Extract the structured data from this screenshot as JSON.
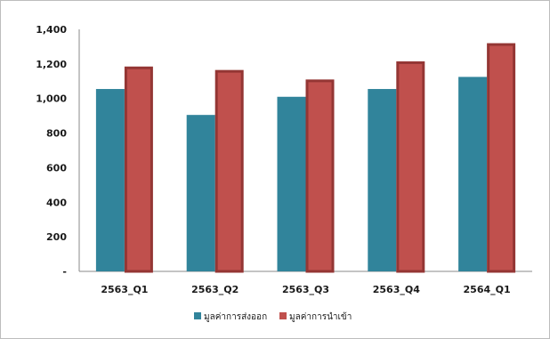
{
  "chart_data": {
    "type": "bar",
    "categories": [
      "2563_Q1",
      "2563_Q2",
      "2563_Q3",
      "2563_Q4",
      "2564_Q1"
    ],
    "series": [
      {
        "name": "มูลค่าการส่งออก",
        "values": [
          1055,
          905,
          1010,
          1055,
          1125
        ],
        "color": "#31849B"
      },
      {
        "name": "มูลค่าการนำเข้า",
        "values": [
          1185,
          1165,
          1110,
          1215,
          1320
        ],
        "color": "#C0504D",
        "stroke": "#943634"
      }
    ],
    "title": "",
    "xlabel": "",
    "ylabel": "",
    "ylim": [
      0,
      1400
    ],
    "yticks": [
      0,
      200,
      400,
      600,
      800,
      1000,
      1200,
      1400
    ],
    "ytick_labels": [
      "-",
      "200",
      "400",
      "600",
      "800",
      "1,000",
      "1,200",
      "1,400"
    ],
    "grid": false,
    "legend": "bottom"
  }
}
